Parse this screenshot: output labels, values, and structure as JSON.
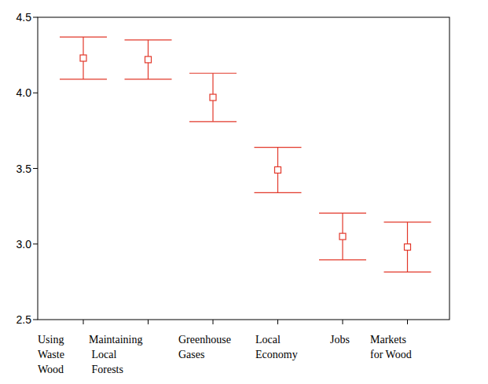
{
  "chart_data": {
    "type": "errorbar",
    "categories": [
      "Using\nWaste\nWood",
      "Maintaining\n Local\n Forests",
      "Greenhouse\nGases",
      "Local\nEconomy",
      "Jobs",
      "Markets\nfor Wood"
    ],
    "values": [
      4.23,
      4.22,
      3.97,
      3.49,
      3.05,
      2.98
    ],
    "errors": [
      0.14,
      0.13,
      0.16,
      0.15,
      0.155,
      0.165
    ],
    "color": "#e2382a",
    "marker": "square",
    "ylim": [
      2.5,
      4.5
    ],
    "yticks": [
      2.5,
      {
        "value": 3,
        "label": "3.0"
      },
      3.5,
      {
        "value": 4,
        "label": "4.0"
      },
      4.5
    ],
    "grid": false
  }
}
